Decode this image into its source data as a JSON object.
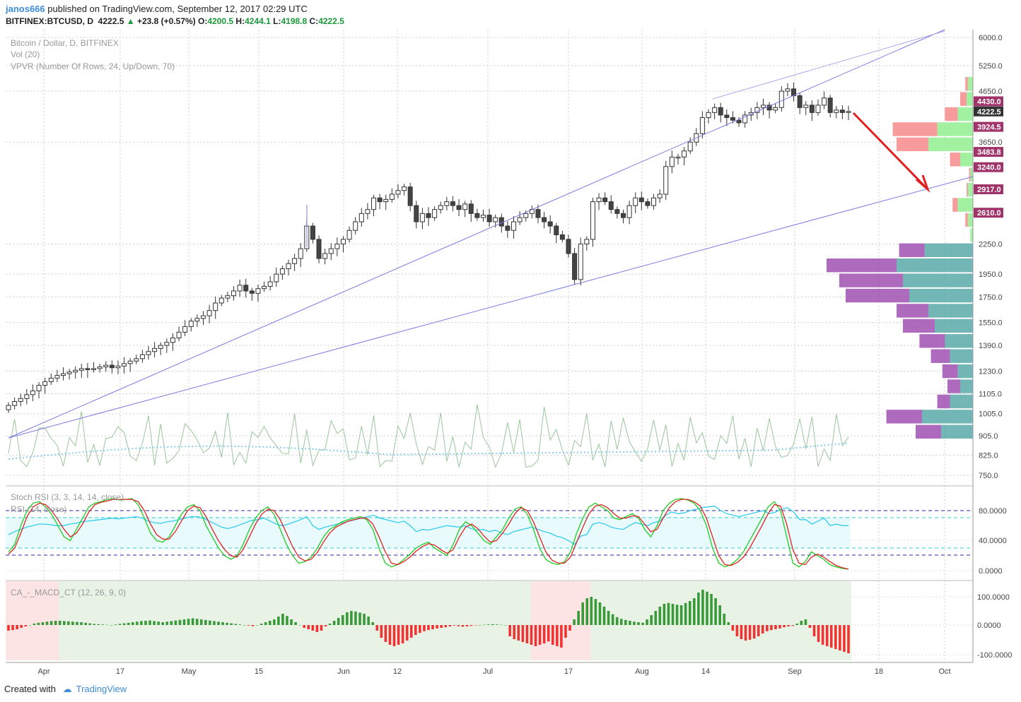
{
  "header": {
    "user": "janos666",
    "published": " published on TradingView.com, September 12, 2017 02:29 UTC",
    "symbol": "BITFINEX:BTCUSD, D",
    "last": "4222.5",
    "change_arrow": "▲",
    "change": "+23.8 (+0.57%)",
    "o_label": "O:",
    "o": "4200.5",
    "h_label": "H:",
    "h": "4244.1",
    "l_label": "L:",
    "l": "4198.8",
    "c_label": "C:",
    "c": "4222.5"
  },
  "legend": {
    "main": "Bitcoin / Dollar, D, BITFINEX",
    "vol": "Vol (20)",
    "vpvr": "VPVR (Number Of Rows, 24, Up/Down, 70)",
    "stoch": "Stoch RSI (3, 3, 14, 14, close)",
    "rsi": "RSI (14, close)",
    "macd": "CA_-_MACD_CT (12, 26, 9, 0)"
  },
  "footer": {
    "created": "Created with",
    "brand": "TradingView"
  },
  "colors": {
    "up": "#ffffff",
    "down": "#444444",
    "channel": "#7b7be0",
    "arrow": "#e02020",
    "tag": "#a0346a",
    "vpvr_up": "#5aa9a9",
    "vpvr_dn": "#a050b0",
    "stoch_k": "#22cc22",
    "stoch_d": "#dd2222",
    "rsi": "#33ccee",
    "macd_pos": "#3a9a3a",
    "macd_neg": "#ee3333"
  },
  "chart_data": [
    {
      "type": "candlestick",
      "title": "Bitcoin / Dollar, D, BITFINEX",
      "x_ticks": [
        "Apr",
        "17",
        "May",
        "15",
        "Jun",
        "12",
        "Jul",
        "17",
        "Aug",
        "14",
        "Sep",
        "18",
        "Oct"
      ],
      "y_ticks": [
        "6000.0",
        "5250.0",
        "4650.0",
        "3650.0",
        "2250.0",
        "1950.0",
        "1750.0",
        "1550.0",
        "1390.0",
        "1230.0",
        "1105.0",
        "1005.0",
        "905.0",
        "825.0",
        "750.0"
      ],
      "y_scale": "log",
      "price_tags": [
        "4430.0",
        "4222.5",
        "3924.5",
        "3483.8",
        "3240.0",
        "2917.0",
        "2610.0"
      ],
      "close_series": [
        1045,
        1065,
        1080,
        1100,
        1120,
        1150,
        1170,
        1190,
        1205,
        1215,
        1225,
        1235,
        1245,
        1240,
        1245,
        1255,
        1265,
        1250,
        1260,
        1275,
        1290,
        1305,
        1330,
        1350,
        1370,
        1390,
        1410,
        1440,
        1480,
        1520,
        1560,
        1580,
        1600,
        1640,
        1700,
        1740,
        1760,
        1800,
        1850,
        1800,
        1780,
        1820,
        1840,
        1880,
        1950,
        2000,
        2050,
        2100,
        2200,
        2450,
        2300,
        2100,
        2150,
        2200,
        2250,
        2300,
        2400,
        2500,
        2600,
        2650,
        2800,
        2750,
        2780,
        2850,
        2900,
        2950,
        2700,
        2500,
        2600,
        2550,
        2650,
        2700,
        2750,
        2700,
        2650,
        2720,
        2600,
        2550,
        2580,
        2500,
        2550,
        2450,
        2400,
        2500,
        2550,
        2600,
        2650,
        2550,
        2500,
        2450,
        2350,
        2300,
        2150,
        1900,
        2250,
        2300,
        2750,
        2800,
        2750,
        2650,
        2600,
        2550,
        2700,
        2800,
        2750,
        2700,
        2800,
        2850,
        3250,
        3400,
        3400,
        3500,
        3650,
        3800,
        4100,
        4200,
        4300,
        4150,
        4100,
        4050,
        4000,
        4150,
        4200,
        4300,
        4350,
        4250,
        4300,
        4650,
        4700,
        4550,
        4300,
        4350,
        4200,
        4350,
        4500,
        4200,
        4250,
        4200,
        4222.5
      ],
      "vpvr_levels_top_to_bottom": [
        {
          "up": 0.04,
          "down": 0.02
        },
        {
          "up": 0.05,
          "down": 0.05
        },
        {
          "up": 0.12,
          "down": 0.1
        },
        {
          "up": 0.28,
          "down": 0.35
        },
        {
          "up": 0.35,
          "down": 0.25
        },
        {
          "up": 0.1,
          "down": 0.08
        },
        {
          "up": 0.02,
          "down": 0.01
        },
        {
          "up": 0.04,
          "down": 0.01
        },
        {
          "up": 0.12,
          "down": 0.04
        },
        {
          "up": 0.04,
          "down": 0.02
        },
        {
          "up": 0.02,
          "down": 0.0
        },
        {
          "up": 0.38,
          "down": 0.2
        },
        {
          "up": 0.6,
          "down": 0.55
        },
        {
          "up": 0.55,
          "down": 0.5
        },
        {
          "up": 0.5,
          "down": 0.5
        },
        {
          "up": 0.35,
          "down": 0.25
        },
        {
          "up": 0.3,
          "down": 0.25
        },
        {
          "up": 0.22,
          "down": 0.2
        },
        {
          "up": 0.18,
          "down": 0.15
        },
        {
          "up": 0.12,
          "down": 0.12
        },
        {
          "up": 0.1,
          "down": 0.1
        },
        {
          "up": 0.18,
          "down": 0.1
        },
        {
          "up": 0.4,
          "down": 0.28
        },
        {
          "up": 0.25,
          "down": 0.2
        }
      ]
    },
    {
      "type": "line",
      "title": "Stoch RSI (3, 3, 14, 14, close)",
      "y_ticks": [
        "80.0000",
        "40.0000",
        "0.0000"
      ],
      "series": [
        {
          "name": "K",
          "values": [
            25,
            35,
            60,
            80,
            90,
            92,
            85,
            75,
            60,
            45,
            40,
            55,
            70,
            85,
            90,
            92,
            95,
            96,
            94,
            95,
            96,
            88,
            70,
            50,
            40,
            38,
            45,
            60,
            75,
            85,
            88,
            80,
            60,
            45,
            30,
            20,
            15,
            20,
            35,
            55,
            70,
            80,
            85,
            75,
            55,
            35,
            20,
            10,
            12,
            18,
            30,
            45,
            55,
            60,
            65,
            68,
            70,
            72,
            68,
            55,
            30,
            10,
            5,
            8,
            15,
            22,
            30,
            35,
            38,
            30,
            25,
            20,
            35,
            55,
            65,
            60,
            50,
            40,
            35,
            45,
            55,
            70,
            82,
            85,
            75,
            55,
            30,
            15,
            10,
            8,
            12,
            25,
            50,
            70,
            85,
            90,
            85,
            80,
            70,
            68,
            72,
            76,
            70,
            55,
            45,
            60,
            80,
            90,
            95,
            96,
            94,
            90,
            80,
            60,
            30,
            10,
            5,
            8,
            15,
            25,
            40,
            55,
            70,
            85,
            92,
            80,
            45,
            10,
            5,
            12,
            25,
            20,
            15,
            8,
            5,
            3,
            2
          ]
        },
        {
          "name": "D",
          "values": [
            22,
            30,
            50,
            72,
            85,
            90,
            88,
            80,
            68,
            55,
            45,
            50,
            62,
            78,
            88,
            91,
            93,
            95,
            95,
            95,
            95,
            92,
            80,
            62,
            48,
            42,
            42,
            52,
            66,
            80,
            86,
            84,
            72,
            55,
            40,
            28,
            20,
            18,
            28,
            45,
            62,
            75,
            82,
            80,
            68,
            50,
            32,
            18,
            13,
            15,
            24,
            38,
            50,
            58,
            62,
            66,
            68,
            70,
            70,
            62,
            45,
            25,
            10,
            8,
            12,
            18,
            26,
            32,
            36,
            34,
            28,
            23,
            28,
            45,
            58,
            62,
            56,
            46,
            38,
            40,
            50,
            62,
            76,
            84,
            80,
            65,
            45,
            25,
            14,
            10,
            10,
            18,
            38,
            58,
            76,
            86,
            88,
            84,
            76,
            70,
            70,
            73,
            72,
            62,
            52,
            55,
            70,
            84,
            92,
            95,
            95,
            92,
            86,
            70,
            45,
            20,
            8,
            7,
            11,
            18,
            30,
            45,
            60,
            76,
            88,
            86,
            62,
            28,
            10,
            8,
            18,
            22,
            18,
            12,
            7,
            4,
            2
          ]
        }
      ]
    },
    {
      "type": "line",
      "title": "RSI (14, close)",
      "values": [
        48,
        52,
        55,
        58,
        60,
        62,
        62,
        61,
        60,
        60,
        62,
        63,
        65,
        66,
        67,
        68,
        69,
        70,
        69,
        70,
        71,
        72,
        70,
        66,
        64,
        63,
        65,
        66,
        68,
        70,
        72,
        72,
        70,
        66,
        62,
        58,
        56,
        58,
        61,
        64,
        67,
        68,
        70,
        66,
        62,
        60,
        62,
        65,
        68,
        72,
        60,
        55,
        58,
        60,
        62,
        64,
        66,
        68,
        70,
        72,
        74,
        70,
        68,
        66,
        64,
        66,
        60,
        52,
        55,
        54,
        56,
        58,
        60,
        59,
        58,
        60,
        56,
        54,
        55,
        52,
        54,
        50,
        48,
        52,
        54,
        56,
        58,
        55,
        52,
        50,
        46,
        44,
        40,
        35,
        46,
        48,
        62,
        64,
        62,
        58,
        56,
        55,
        60,
        64,
        62,
        60,
        64,
        66,
        74,
        78,
        76,
        77,
        80,
        82,
        84,
        85,
        86,
        80,
        76,
        74,
        72,
        74,
        76,
        78,
        80,
        76,
        78,
        82,
        84,
        78,
        68,
        68,
        62,
        66,
        70,
        60,
        62,
        60,
        60
      ]
    },
    {
      "type": "bar",
      "title": "CA_-_MACD_CT (12, 26, 9, 0)",
      "y_ticks": [
        "100.0000",
        "0.0000",
        "-100.0000"
      ],
      "values": [
        -20,
        -18,
        -15,
        -10,
        -5,
        0,
        5,
        8,
        10,
        12,
        14,
        15,
        15,
        14,
        13,
        12,
        11,
        10,
        8,
        6,
        4,
        3,
        2,
        1,
        0,
        2,
        4,
        6,
        8,
        10,
        12,
        14,
        15,
        16,
        14,
        12,
        10,
        12,
        14,
        16,
        18,
        20,
        22,
        24,
        22,
        20,
        18,
        16,
        14,
        12,
        10,
        8,
        6,
        4,
        2,
        0,
        -2,
        -4,
        0,
        5,
        10,
        15,
        20,
        30,
        40,
        32,
        20,
        10,
        0,
        -10,
        -15,
        -20,
        -25,
        -20,
        -5,
        5,
        15,
        25,
        35,
        45,
        50,
        48,
        44,
        40,
        30,
        10,
        -20,
        -45,
        -60,
        -70,
        -75,
        -70,
        -65,
        -55,
        -45,
        -35,
        -28,
        -22,
        -18,
        -15,
        -12,
        -10,
        -8,
        -5,
        -2,
        -4,
        -6,
        -5,
        -3,
        -1,
        0,
        1,
        2,
        3,
        2,
        1,
        0,
        -40,
        -50,
        -55,
        -60,
        -65,
        -70,
        -75,
        -70,
        -65,
        -58,
        -70,
        -75,
        -80,
        -45,
        -20,
        20,
        50,
        80,
        95,
        100,
        92,
        80,
        65,
        50,
        38,
        28,
        22,
        18,
        15,
        12,
        10,
        8,
        20,
        35,
        50,
        65,
        75,
        78,
        75,
        72,
        70,
        78,
        85,
        95,
        115,
        125,
        118,
        110,
        95,
        70,
        40,
        10,
        -20,
        -40,
        -50,
        -55,
        -52,
        -48,
        -40,
        -30,
        -22,
        -18,
        -15,
        -12,
        -8,
        -5,
        -3,
        5,
        15,
        20,
        -10,
        -40,
        -60,
        -70,
        -75,
        -80,
        -85,
        -90,
        -95,
        -100
      ]
    }
  ]
}
